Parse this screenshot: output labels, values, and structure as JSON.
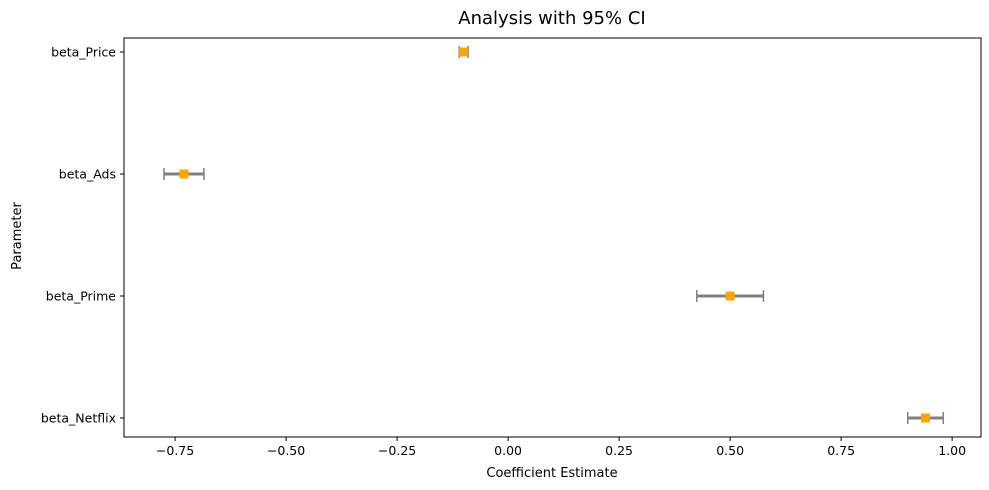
{
  "chart_data": {
    "type": "errorbar",
    "title": "Analysis with 95% CI",
    "xlabel": "Coefficient Estimate",
    "ylabel": "Parameter",
    "xlim": [
      -0.865,
      1.065
    ],
    "x_ticks": [
      -0.75,
      -0.5,
      -0.25,
      0.0,
      0.25,
      0.5,
      0.75,
      1.0
    ],
    "x_tick_labels": [
      "−0.75",
      "−0.50",
      "−0.25",
      "0.00",
      "0.25",
      "0.50",
      "0.75",
      "1.00"
    ],
    "categories": [
      "beta_Price",
      "beta_Ads",
      "beta_Prime",
      "beta_Netflix"
    ],
    "estimates": [
      -0.1,
      -0.73,
      0.5,
      0.94
    ],
    "ci_lower": [
      -0.11,
      -0.775,
      0.425,
      0.9
    ],
    "ci_upper": [
      -0.09,
      -0.685,
      0.575,
      0.98
    ],
    "grid": false,
    "colors": {
      "marker": "#ffa500",
      "errorbar": "#808080",
      "axes": "#000000"
    }
  }
}
